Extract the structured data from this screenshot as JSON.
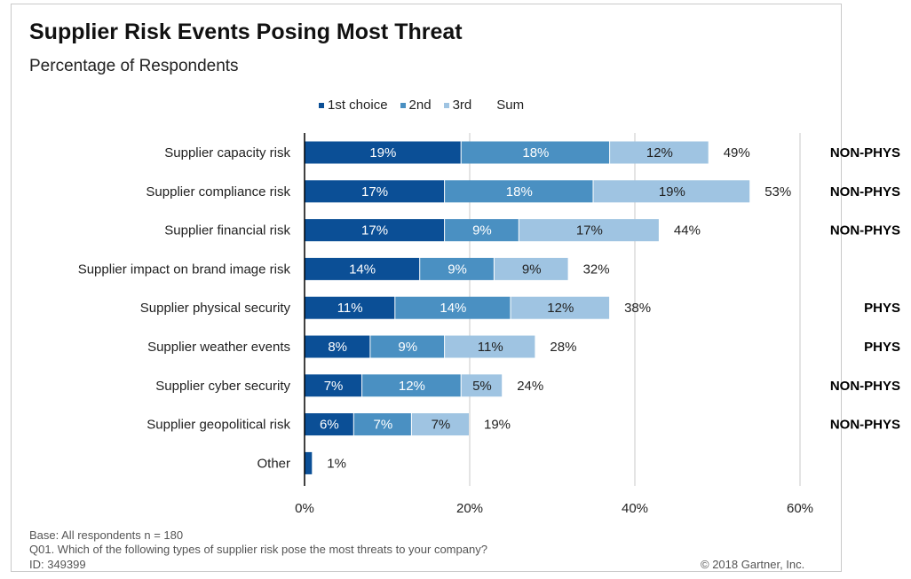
{
  "header": {
    "title": "Supplier Risk Events Posing Most Threat",
    "subtitle": "Percentage of Respondents"
  },
  "legend": {
    "items": [
      {
        "label": "1st choice",
        "color": "#0b4f96"
      },
      {
        "label": "2nd",
        "color": "#4a90c2"
      },
      {
        "label": "3rd",
        "color": "#9fc4e2"
      },
      {
        "label": "Sum",
        "color": ""
      }
    ]
  },
  "chart_data": {
    "type": "bar",
    "orientation": "horizontal",
    "stacked": true,
    "categories": [
      "Supplier capacity risk",
      "Supplier compliance risk",
      "Supplier financial risk",
      "Supplier impact on brand image risk",
      "Supplier physical security",
      "Supplier weather events",
      "Supplier cyber security",
      "Supplier geopolitical risk",
      "Other"
    ],
    "series": [
      {
        "name": "1st choice",
        "values": [
          19,
          17,
          17,
          14,
          11,
          8,
          7,
          6,
          1
        ],
        "labels": [
          "19%",
          "17%",
          "17%",
          "14%",
          "11%",
          "8%",
          "7%",
          "6%",
          ""
        ]
      },
      {
        "name": "2nd",
        "values": [
          18,
          18,
          9,
          9,
          14,
          9,
          12,
          7,
          0
        ],
        "labels": [
          "18%",
          "18%",
          "9%",
          "9%",
          "14%",
          "9%",
          "12%",
          "7%",
          ""
        ]
      },
      {
        "name": "3rd",
        "values": [
          12,
          19,
          17,
          9,
          12,
          11,
          5,
          7,
          0
        ],
        "labels": [
          "12%",
          "19%",
          "17%",
          "9%",
          "12%",
          "11%",
          "5%",
          "7%",
          ""
        ]
      }
    ],
    "sums": [
      "49%",
      "53%",
      "44%",
      "32%",
      "38%",
      "28%",
      "24%",
      "19%",
      "1%"
    ],
    "xlim": [
      0,
      60
    ],
    "xticks": [
      "0%",
      "20%",
      "40%",
      "60%"
    ],
    "grid": true,
    "colors": {
      "first": "#0b4f96",
      "second": "#4a90c2",
      "third": "#9fc4e2",
      "grid": "#c8c8c8",
      "axis": "#000000"
    }
  },
  "annotations": {
    "tags": [
      "NON-PHYS",
      "NON-PHYS",
      "NON-PHYS",
      "",
      "PHYS",
      "PHYS",
      "NON-PHYS",
      "NON-PHYS",
      ""
    ]
  },
  "footer": {
    "base": "Base: All respondents n = 180",
    "question": "Q01. Which of the following types of supplier risk pose the most threats to your company?",
    "id": "ID: 349399",
    "copyright": "© 2018 Gartner, Inc."
  }
}
